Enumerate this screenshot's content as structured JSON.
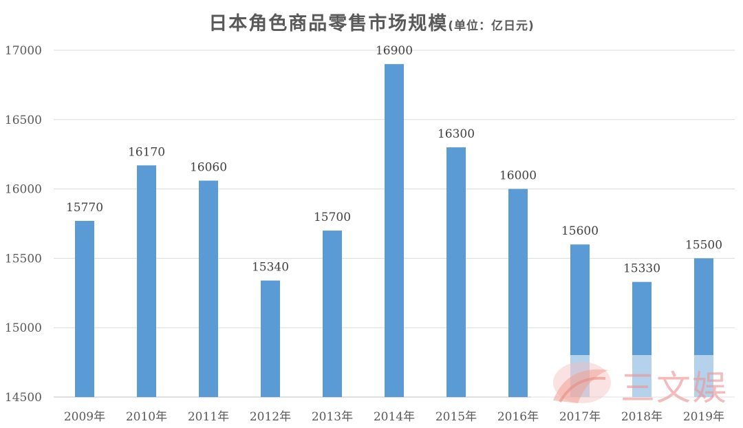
{
  "chart_data": {
    "type": "bar",
    "title": "日本角色商品零售市场规模",
    "subtitle": "(单位：亿日元)",
    "categories": [
      "2009年",
      "2010年",
      "2011年",
      "2012年",
      "2013年",
      "2014年",
      "2015年",
      "2016年",
      "2017年",
      "2018年",
      "2019年"
    ],
    "values": [
      15770,
      16170,
      16060,
      15340,
      15700,
      16900,
      16300,
      16000,
      15600,
      15330,
      15500
    ],
    "ylim": [
      14500,
      17000
    ],
    "yticks": [
      14500,
      15000,
      15500,
      16000,
      16500,
      17000
    ],
    "bar_color": "#5b9bd5",
    "grid": true,
    "data_labels": true
  },
  "watermark": {
    "text": "三文娱"
  }
}
